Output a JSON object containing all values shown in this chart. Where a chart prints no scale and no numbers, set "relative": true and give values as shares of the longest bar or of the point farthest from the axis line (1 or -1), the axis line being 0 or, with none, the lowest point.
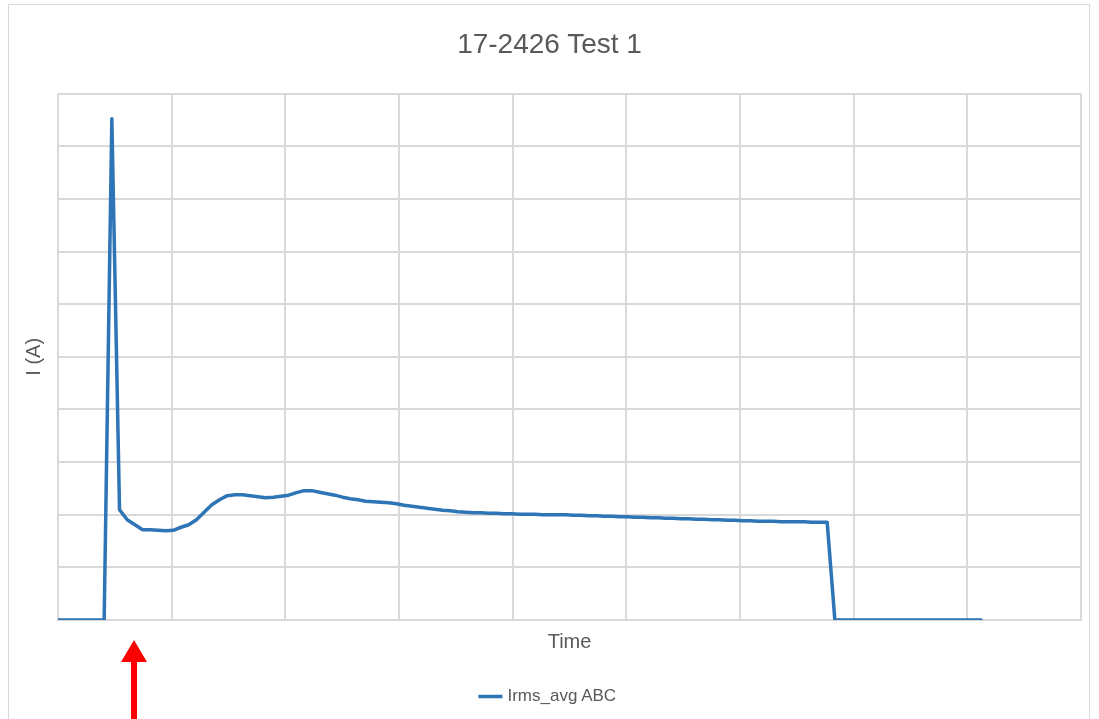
{
  "chart_data": {
    "type": "line",
    "title": "17-2426 Test 1",
    "xlabel": "Time",
    "ylabel": "I (A)",
    "relative": true,
    "grid": true,
    "legend": "bottom",
    "marker": "none",
    "line_style": "solid",
    "tick_labels": false,
    "categories": [
      null,
      null,
      null,
      null,
      null,
      null,
      null,
      null,
      null,
      null,
      null,
      null,
      null,
      null,
      null,
      null,
      null,
      null,
      null,
      null,
      null,
      null,
      null,
      null,
      null,
      null,
      null,
      null,
      null,
      null,
      null,
      null,
      null,
      null,
      null,
      null,
      null,
      null,
      null,
      null,
      null,
      null,
      null,
      null,
      null,
      null,
      null,
      null,
      null,
      null,
      null,
      null,
      null,
      null,
      null,
      null,
      null,
      null,
      null,
      null,
      null,
      null,
      null,
      null,
      null,
      null,
      null,
      null,
      null,
      null,
      null,
      null,
      null,
      null,
      null,
      null,
      null,
      null,
      null,
      null,
      null,
      null,
      null,
      null,
      null,
      null,
      null,
      null,
      null,
      null,
      null,
      null,
      null,
      null,
      null,
      null,
      null,
      null,
      null,
      null,
      null,
      null,
      null,
      null,
      null,
      null,
      null,
      null,
      null,
      null,
      null,
      null,
      null,
      null,
      null,
      null,
      null,
      null,
      null,
      null,
      null,
      null,
      null,
      null,
      null,
      null,
      null,
      null,
      null,
      null,
      null,
      null,
      null,
      null
    ],
    "series": [
      {
        "name": "Irms_avg ABC",
        "color": "#2e75b6",
        "values": [
          0,
          0,
          0,
          0,
          0,
          0,
          0,
          1,
          0.22,
          0.2,
          0.19,
          0.18,
          0.18,
          0.179,
          0.178,
          0.179,
          0.185,
          0.19,
          0.2,
          0.215,
          0.23,
          0.24,
          0.248,
          0.25,
          0.25,
          0.248,
          0.246,
          0.244,
          0.245,
          0.247,
          0.249,
          0.254,
          0.258,
          0.258,
          0.255,
          0.252,
          0.249,
          0.245,
          0.242,
          0.24,
          0.237,
          0.236,
          0.235,
          0.234,
          0.232,
          0.229,
          0.227,
          0.225,
          0.223,
          0.221,
          0.219,
          0.218,
          0.216,
          0.215,
          0.214,
          0.214,
          0.213,
          0.213,
          0.212,
          0.212,
          0.211,
          0.211,
          0.211,
          0.21,
          0.21,
          0.21,
          0.21,
          0.209,
          0.209,
          0.208,
          0.208,
          0.207,
          0.207,
          0.206,
          0.206,
          0.205,
          0.205,
          0.204,
          0.204,
          0.203,
          0.203,
          0.202,
          0.202,
          0.201,
          0.201,
          0.2,
          0.2,
          0.199,
          0.199,
          0.198,
          0.198,
          0.197,
          0.197,
          0.197,
          0.196,
          0.196,
          0.196,
          0.196,
          0.195,
          0.195,
          0.195,
          0,
          0,
          0,
          0,
          0,
          0,
          0,
          0,
          0,
          0,
          0,
          0,
          0,
          0,
          0,
          0,
          0,
          0,
          0,
          0,
          null,
          null,
          null,
          null,
          null,
          null,
          null,
          null,
          null,
          null,
          null,
          null,
          null
        ]
      }
    ]
  }
}
